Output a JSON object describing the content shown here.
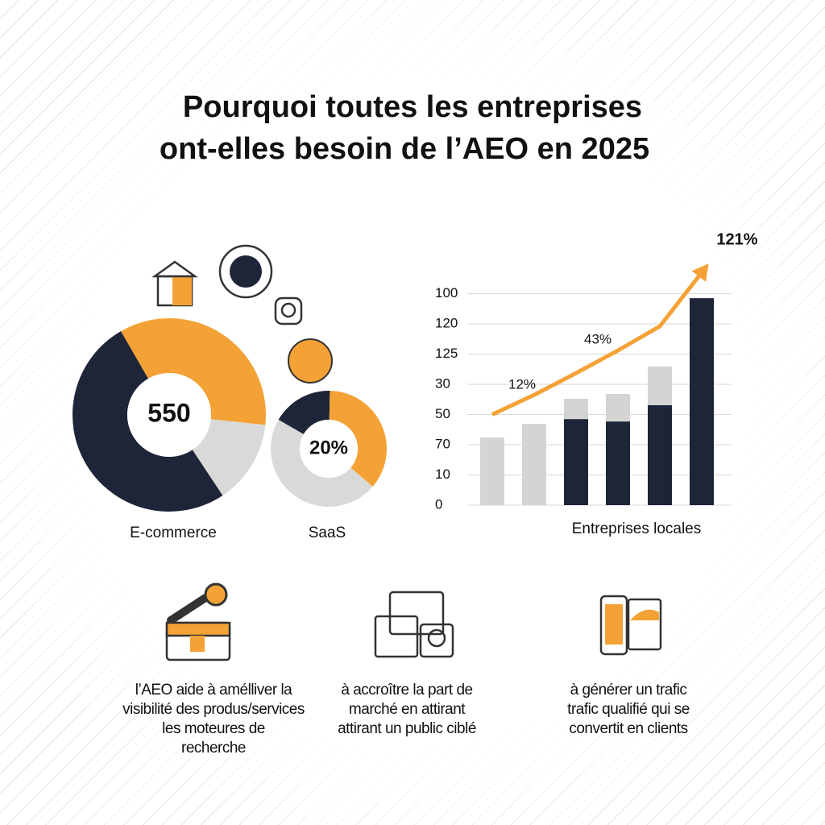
{
  "title": [
    "Pourquoi toutes les entreprises",
    "ont-elles besoin de l’AEO en 2025"
  ],
  "chart_data": [
    {
      "type": "donut",
      "label": "E-commerce",
      "center_label": "550",
      "values": [
        35,
        14,
        51
      ],
      "colors": [
        "#f4a236",
        "#d9d9d9",
        "#1e2538"
      ]
    },
    {
      "type": "donut",
      "label": "SaaS",
      "center_label": "20%",
      "values": [
        17,
        36,
        47
      ],
      "colors": [
        "#1e2538",
        "#f4a236",
        "#d9d9d9"
      ]
    },
    {
      "type": "bar",
      "xlabel": "Entreprises locales",
      "categories": [
        null,
        null,
        null,
        null,
        null,
        null
      ],
      "series": [
        {
          "color": "#1e2538",
          "values": [
            0,
            0,
            2.85,
            2.77,
            3.31,
            6.85
          ]
        },
        {
          "color": "#d4d4d4",
          "values": [
            2.24,
            2.69,
            0.67,
            0.91,
            1.28,
            0
          ]
        },
        {
          "type": "line",
          "color": "#f4a236",
          "values": [
            3.0,
            3.65,
            4.37,
            5.12,
            5.92,
            7.7
          ]
        }
      ],
      "annotations": [
        "12%",
        "43%",
        "121%"
      ],
      "ylim": [
        0,
        8.5
      ],
      "yticks": [
        {
          "value": 0,
          "label": "0"
        },
        {
          "value": 1,
          "label": "10"
        },
        {
          "value": 2,
          "label": "70"
        },
        {
          "value": 3,
          "label": "50"
        },
        {
          "value": 4,
          "label": "30"
        },
        {
          "value": 5,
          "label": "125"
        },
        {
          "value": 6,
          "label": "120"
        },
        {
          "value": 7,
          "label": "100"
        }
      ],
      "grid": true
    }
  ],
  "features": [
    [
      "l’AEO aide à amélliver la",
      "visibilité des produs/services",
      "les moteures de",
      "recherche"
    ],
    [
      "à accroître la part de",
      "marché en attirant",
      "attirant un public ciblé"
    ],
    [
      "à générer un trafic",
      "trafic qualifié qui se",
      "convertit en clients"
    ]
  ]
}
